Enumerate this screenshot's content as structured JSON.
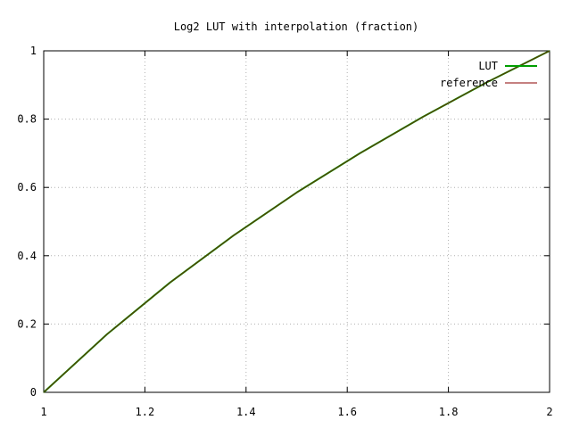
{
  "chart_data": {
    "type": "line",
    "title": "Log2 LUT with interpolation (fraction)",
    "xlabel": "",
    "ylabel": "",
    "xlim": [
      1,
      2
    ],
    "ylim": [
      0,
      1
    ],
    "x_ticks": [
      1,
      1.2,
      1.4,
      1.6,
      1.8,
      2
    ],
    "x_tick_labels": [
      "1",
      "1.2",
      "1.4",
      "1.6",
      "1.8",
      "2"
    ],
    "y_ticks": [
      0,
      0.2,
      0.4,
      0.6,
      0.8,
      1
    ],
    "y_tick_labels": [
      "0",
      "0.2",
      "0.4",
      "0.6",
      "0.8",
      "1"
    ],
    "grid": true,
    "legend_position": "top-right",
    "series": [
      {
        "name": "LUT",
        "color": "#009e00",
        "x": [
          1,
          1.125,
          1.25,
          1.375,
          1.5,
          1.625,
          1.75,
          1.875,
          2
        ],
        "y": [
          0,
          0.17,
          0.322,
          0.459,
          0.585,
          0.7,
          0.807,
          0.907,
          1
        ]
      },
      {
        "name": "reference",
        "color": "#8b0000",
        "x": [
          1,
          1.125,
          1.25,
          1.375,
          1.5,
          1.625,
          1.75,
          1.875,
          2
        ],
        "y": [
          0,
          0.17,
          0.322,
          0.459,
          0.585,
          0.7,
          0.807,
          0.907,
          1
        ]
      }
    ]
  }
}
